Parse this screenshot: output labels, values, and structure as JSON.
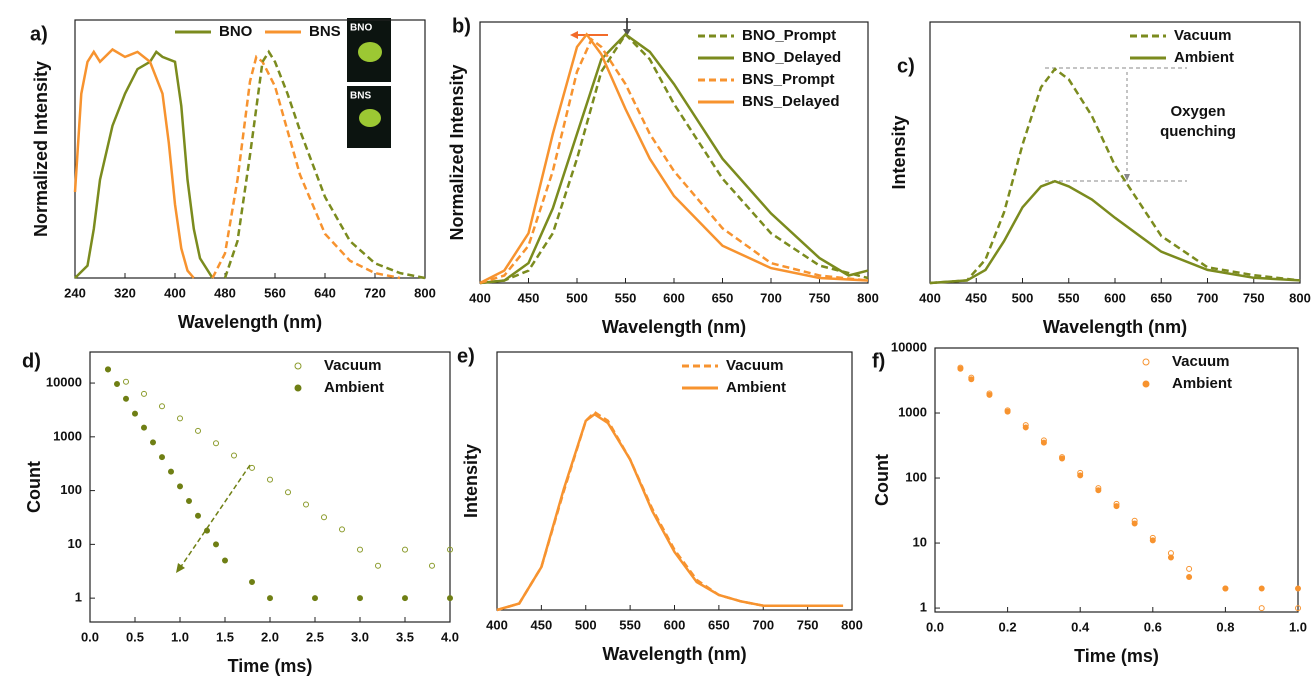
{
  "chart_data": [
    {
      "type": "line",
      "label": "a)",
      "xlabel": "Wavelength (nm)",
      "ylabel": "Normalized Intensity",
      "xlim": [
        240,
        800
      ],
      "xticks": [
        240,
        320,
        400,
        480,
        560,
        640,
        720,
        800
      ],
      "ylim": [
        0,
        1.05
      ],
      "legend": "upper center",
      "inset_labels": [
        "BNO",
        "BNS"
      ],
      "series": [
        {
          "name": "BNO",
          "color": "#7b8b1e",
          "x": [
            240,
            260,
            270,
            280,
            300,
            320,
            340,
            360,
            370,
            380,
            400,
            410,
            420,
            430,
            440,
            460
          ],
          "values": [
            0,
            0.05,
            0.2,
            0.4,
            0.62,
            0.75,
            0.85,
            0.88,
            0.92,
            0.9,
            0.88,
            0.7,
            0.4,
            0.2,
            0.08,
            0
          ]
        },
        {
          "name": "BNS",
          "color": "#f7932f",
          "x": [
            240,
            250,
            260,
            270,
            280,
            300,
            320,
            340,
            360,
            380,
            390,
            400,
            410,
            420,
            430
          ],
          "values": [
            0.35,
            0.75,
            0.88,
            0.92,
            0.88,
            0.93,
            0.9,
            0.92,
            0.88,
            0.75,
            0.55,
            0.3,
            0.12,
            0.03,
            0
          ]
        },
        {
          "color": "#f7932f",
          "dash": true,
          "x": [
            460,
            480,
            500,
            520,
            530,
            540,
            560,
            580,
            600,
            640,
            680,
            720,
            760
          ],
          "values": [
            0,
            0.1,
            0.4,
            0.8,
            0.9,
            0.88,
            0.78,
            0.6,
            0.42,
            0.18,
            0.07,
            0.02,
            0
          ]
        },
        {
          "color": "#7b8b1e",
          "dash": true,
          "x": [
            480,
            500,
            520,
            540,
            550,
            560,
            580,
            600,
            640,
            680,
            720,
            760,
            800
          ],
          "values": [
            0,
            0.15,
            0.5,
            0.88,
            0.92,
            0.88,
            0.75,
            0.6,
            0.33,
            0.15,
            0.06,
            0.02,
            0
          ]
        }
      ]
    },
    {
      "type": "line",
      "label": "b)",
      "xlabel": "Wavelength (nm)",
      "ylabel": "Normalized Intensity",
      "xlim": [
        400,
        800
      ],
      "xticks": [
        400,
        450,
        500,
        550,
        600,
        650,
        700,
        750,
        800
      ],
      "ylim": [
        0,
        1.05
      ],
      "legend": "upper right",
      "series": [
        {
          "name": "BNO_Prompt",
          "color": "#7b8b1e",
          "dash": true,
          "x": [
            400,
            425,
            450,
            475,
            500,
            525,
            550,
            575,
            600,
            650,
            700,
            750,
            800
          ],
          "values": [
            0,
            0.01,
            0.05,
            0.2,
            0.5,
            0.85,
            1.0,
            0.9,
            0.72,
            0.42,
            0.2,
            0.07,
            0.02
          ]
        },
        {
          "name": "BNO_Delayed",
          "color": "#7b8b1e",
          "x": [
            400,
            425,
            450,
            475,
            500,
            525,
            550,
            575,
            600,
            650,
            700,
            750,
            780,
            800
          ],
          "values": [
            0,
            0.01,
            0.08,
            0.3,
            0.6,
            0.9,
            1.0,
            0.93,
            0.8,
            0.5,
            0.28,
            0.1,
            0.03,
            0.05
          ]
        },
        {
          "name": "BNS_Prompt",
          "color": "#f7932f",
          "dash": true,
          "x": [
            400,
            425,
            450,
            475,
            500,
            515,
            525,
            550,
            575,
            600,
            650,
            700,
            750,
            800
          ],
          "values": [
            0,
            0.03,
            0.15,
            0.45,
            0.85,
            0.98,
            0.95,
            0.8,
            0.6,
            0.45,
            0.22,
            0.08,
            0.03,
            0.01
          ]
        },
        {
          "name": "BNS_Delayed",
          "color": "#f7932f",
          "x": [
            400,
            425,
            450,
            475,
            500,
            510,
            525,
            550,
            575,
            600,
            650,
            700,
            750,
            800
          ],
          "values": [
            0,
            0.05,
            0.2,
            0.6,
            0.95,
            1.0,
            0.92,
            0.7,
            0.5,
            0.35,
            0.15,
            0.06,
            0.02,
            0.01
          ]
        }
      ]
    },
    {
      "type": "line",
      "label": "c)",
      "xlabel": "Wavelength (nm)",
      "ylabel": "Intensity",
      "xlim": [
        400,
        800
      ],
      "xticks": [
        400,
        450,
        500,
        550,
        600,
        650,
        700,
        750,
        800
      ],
      "ylim": [
        0,
        1
      ],
      "legend": "upper right",
      "annotation": [
        "Oxygen",
        "quenching"
      ],
      "series": [
        {
          "name": "Vacuum",
          "color": "#7b8b1e",
          "dash": true,
          "x": [
            400,
            440,
            460,
            480,
            500,
            520,
            535,
            550,
            575,
            600,
            650,
            700,
            750,
            800
          ],
          "values": [
            0,
            0.01,
            0.09,
            0.27,
            0.53,
            0.75,
            0.82,
            0.78,
            0.64,
            0.45,
            0.18,
            0.06,
            0.03,
            0.01
          ]
        },
        {
          "name": "Ambient",
          "color": "#7b8b1e",
          "x": [
            400,
            440,
            460,
            480,
            500,
            520,
            535,
            550,
            575,
            600,
            650,
            700,
            750,
            800
          ],
          "values": [
            0,
            0.01,
            0.05,
            0.16,
            0.29,
            0.37,
            0.39,
            0.37,
            0.32,
            0.25,
            0.12,
            0.05,
            0.02,
            0.01
          ]
        }
      ]
    },
    {
      "type": "scatter",
      "label": "d)",
      "xlabel": "Time (ms)",
      "ylabel": "Count",
      "yscale": "log",
      "xlim": [
        0,
        4
      ],
      "xticks": [
        {
          "value": 0,
          "label": "0.0"
        },
        0.5,
        {
          "value": 1,
          "label": "1.0"
        },
        1.5,
        {
          "value": 2,
          "label": "2.0"
        },
        2.5,
        {
          "value": 3,
          "label": "3.0"
        },
        3.5,
        {
          "value": 4,
          "label": "4.0"
        }
      ],
      "ylim": [
        0.36,
        37800
      ],
      "yticks": [
        1,
        10,
        100,
        1000,
        10000
      ],
      "legend": "upper right",
      "series": [
        {
          "name": "Vacuum",
          "color": "#8a9a2a",
          "marker": "open",
          "x": [
            0.2,
            0.4,
            0.6,
            0.8,
            1.0,
            1.2,
            1.4,
            1.6,
            1.8,
            2.0,
            2.2,
            2.4,
            2.6,
            2.8,
            3.0,
            3.2,
            3.5,
            3.8,
            4.0
          ],
          "values": [
            18000,
            10600,
            6300,
            3700,
            2200,
            1290,
            760,
            450,
            265,
            160,
            93,
            55,
            32,
            19,
            8,
            4,
            8,
            4,
            8
          ]
        },
        {
          "name": "Ambient",
          "color": "#6f7f14",
          "marker": "filled",
          "x": [
            0.2,
            0.3,
            0.4,
            0.5,
            0.6,
            0.7,
            0.8,
            0.9,
            1.0,
            1.1,
            1.2,
            1.3,
            1.4,
            1.5,
            1.8,
            2.0,
            2.5,
            3.0,
            3.5,
            4.0
          ],
          "values": [
            18000,
            9600,
            5100,
            2700,
            1480,
            790,
            420,
            225,
            120,
            64,
            34,
            18,
            10,
            5,
            2,
            1,
            1,
            1,
            1,
            1
          ]
        }
      ]
    },
    {
      "type": "line",
      "label": "e)",
      "xlabel": "Wavelength (nm)",
      "ylabel": "Intensity",
      "xlim": [
        400,
        800
      ],
      "xticks": [
        400,
        450,
        500,
        550,
        600,
        650,
        700,
        750,
        800
      ],
      "ylim": [
        0,
        1.2
      ],
      "legend": "upper right",
      "series": [
        {
          "name": "Vacuum",
          "color": "#f7932f",
          "dash": true,
          "x": [
            400,
            425,
            450,
            475,
            500,
            510,
            525,
            550,
            575,
            600,
            625,
            650,
            675,
            700,
            750,
            775,
            790
          ],
          "values": [
            0,
            0.03,
            0.2,
            0.55,
            0.88,
            0.92,
            0.88,
            0.7,
            0.47,
            0.28,
            0.14,
            0.07,
            0.04,
            0.02,
            0.02,
            0.02,
            0.02
          ]
        },
        {
          "name": "Ambient",
          "color": "#f7932f",
          "x": [
            400,
            425,
            450,
            475,
            500,
            510,
            525,
            550,
            575,
            600,
            625,
            650,
            675,
            700,
            750,
            775,
            790
          ],
          "values": [
            0,
            0.03,
            0.2,
            0.56,
            0.88,
            0.91,
            0.87,
            0.7,
            0.46,
            0.27,
            0.13,
            0.07,
            0.04,
            0.02,
            0.02,
            0.02,
            0.02
          ]
        }
      ]
    },
    {
      "type": "scatter",
      "label": "f)",
      "xlabel": "Time (ms)",
      "ylabel": "Count",
      "yscale": "log",
      "xlim": [
        0,
        1
      ],
      "xticks": [
        {
          "value": 0,
          "label": "0.0"
        },
        0.2,
        0.4,
        0.6,
        0.8,
        {
          "value": 1,
          "label": "1.0"
        }
      ],
      "ylim": [
        0.87,
        10000
      ],
      "yticks": [
        1,
        10,
        100,
        1000,
        10000
      ],
      "legend": "upper right",
      "series": [
        {
          "name": "Vacuum",
          "color": "#f7932f",
          "marker": "open",
          "x": [
            0.07,
            0.1,
            0.15,
            0.2,
            0.25,
            0.3,
            0.35,
            0.4,
            0.45,
            0.5,
            0.55,
            0.6,
            0.65,
            0.7,
            0.8,
            0.9,
            1.0
          ],
          "values": [
            5000,
            3500,
            2000,
            1100,
            650,
            380,
            210,
            120,
            70,
            40,
            22,
            12,
            7,
            4,
            2,
            1,
            1
          ]
        },
        {
          "name": "Ambient",
          "color": "#f7932f",
          "marker": "filled",
          "x": [
            0.07,
            0.1,
            0.15,
            0.2,
            0.25,
            0.3,
            0.35,
            0.4,
            0.45,
            0.5,
            0.55,
            0.6,
            0.65,
            0.7,
            0.8,
            0.9,
            1.0
          ],
          "values": [
            4800,
            3300,
            1900,
            1050,
            600,
            350,
            200,
            110,
            65,
            37,
            20,
            11,
            6,
            3,
            2,
            2,
            2
          ]
        }
      ]
    }
  ]
}
